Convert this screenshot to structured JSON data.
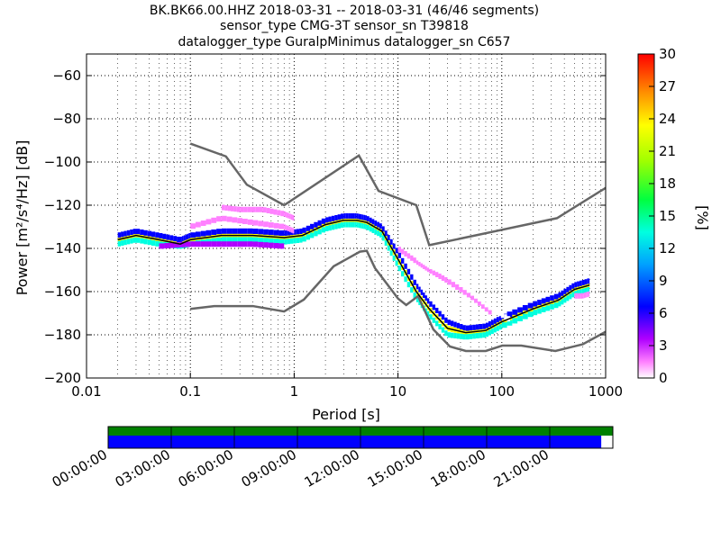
{
  "header": {
    "line1": "BK.BK66.00.HHZ   2018-03-31 -- 2018-03-31  (46/46 segments)",
    "line2": "sensor_type CMG-3T sensor_sn T39818",
    "line3": "datalogger_type GuralpMinimus datalogger_sn C657"
  },
  "chart_data": [
    {
      "type": "heatmap",
      "xlabel": "Period [s]",
      "ylabel": "Power [m²/s⁴/Hz] [dB]",
      "xscale": "log",
      "xlim": [
        0.01,
        1000
      ],
      "ylim": [
        -200,
        -50
      ],
      "x_ticks": [
        0.01,
        0.1,
        1,
        10,
        100,
        1000
      ],
      "x_tick_labels": [
        "0.01",
        "0.1",
        "1",
        "10",
        "100",
        "1000"
      ],
      "y_ticks": [
        -200,
        -180,
        -160,
        -140,
        -120,
        -100,
        -80,
        -60
      ],
      "y_tick_labels": [
        "−200",
        "−180",
        "−160",
        "−140",
        "−120",
        "−100",
        "−80",
        "−60"
      ],
      "grid": true,
      "colorbar": {
        "label": "[%]",
        "range": [
          0,
          30
        ],
        "ticks": [
          0,
          3,
          6,
          9,
          12,
          15,
          18,
          21,
          24,
          27,
          30
        ],
        "tick_labels": [
          "0",
          "3",
          "6",
          "9",
          "12",
          "15",
          "18",
          "21",
          "24",
          "27",
          "30"
        ],
        "colormap": "pqlx"
      },
      "series": [
        {
          "role": "mode",
          "color": "#000000",
          "x": [
            0.02,
            0.03,
            0.05,
            0.08,
            0.1,
            0.2,
            0.4,
            0.8,
            1.2,
            2,
            3,
            4,
            5,
            7,
            10,
            15,
            20,
            30,
            45,
            70,
            100,
            200,
            350,
            500,
            700
          ],
          "y": [
            -136,
            -134,
            -136,
            -138,
            -136,
            -134,
            -134,
            -135,
            -134,
            -129,
            -127,
            -127,
            -128,
            -132,
            -145,
            -160,
            -168,
            -177,
            -179,
            -178,
            -174,
            -168,
            -164,
            -159,
            -157
          ]
        },
        {
          "role": "upper-model",
          "color": "#666666",
          "x": [
            0.1,
            0.22,
            0.35,
            0.8,
            4.2,
            6.5,
            15,
            20,
            340,
            1000
          ],
          "y": [
            -91.5,
            -97.4,
            -110.5,
            -120,
            -97,
            -113.4,
            -120,
            -138.5,
            -126,
            -112
          ]
        },
        {
          "role": "lower-model",
          "color": "#666666",
          "x": [
            0.1,
            0.17,
            0.4,
            0.8,
            1.24,
            2.4,
            4.3,
            5,
            6,
            10,
            12,
            15.6,
            21.9,
            31.6,
            45,
            70,
            101,
            154,
            328,
            600,
            1000
          ],
          "y": [
            -168,
            -166.7,
            -166.7,
            -169.2,
            -163.7,
            -148.3,
            -141.5,
            -141.1,
            -149.1,
            -163.2,
            -166.2,
            -162.1,
            -177.5,
            -185.4,
            -187.5,
            -187.5,
            -185,
            -185,
            -187.5,
            -184.4,
            -178.6
          ]
        }
      ],
      "density_bands": [
        {
          "x": [
            0.02,
            0.03,
            0.05,
            0.08,
            0.1,
            0.2,
            0.4,
            0.8,
            1.2,
            2,
            3,
            4,
            5,
            7,
            10,
            15,
            20,
            30,
            45,
            70,
            100,
            200,
            350,
            500,
            700
          ],
          "y": [
            -136,
            -134,
            -136,
            -138,
            -136,
            -134,
            -134,
            -135,
            -134,
            -129,
            -127,
            -127,
            -128,
            -132,
            -145,
            -160,
            -168,
            -177,
            -179,
            -178,
            -174,
            -168,
            -164,
            -159,
            -157
          ],
          "percent": 25
        },
        {
          "x": [
            0.02,
            0.03,
            0.05,
            0.08,
            0.1,
            0.2,
            0.4,
            0.8,
            1.2,
            2,
            3,
            4,
            5,
            7,
            10,
            15,
            20,
            30,
            45,
            70,
            100,
            200,
            350,
            500,
            700
          ],
          "y": [
            -138,
            -136,
            -138,
            -139,
            -138,
            -136,
            -136,
            -137,
            -136,
            -131,
            -129,
            -129,
            -130,
            -134,
            -148,
            -163,
            -171,
            -180,
            -181,
            -180,
            -176,
            -170,
            -166,
            -161,
            -159
          ],
          "percent": 14
        },
        {
          "x": [
            0.02,
            0.03,
            0.05,
            0.08,
            0.1,
            0.2,
            0.4,
            0.8,
            1.2,
            2,
            3,
            4,
            5,
            7,
            10,
            15,
            20,
            30,
            45,
            70,
            100,
            200,
            350,
            500,
            700
          ],
          "y": [
            -134,
            -132,
            -134,
            -136,
            -134,
            -132,
            -132,
            -133,
            -132,
            -127,
            -125,
            -125,
            -126,
            -130,
            -142,
            -157,
            -165,
            -174,
            -177,
            -176,
            -172,
            -166,
            -162,
            -157,
            -155
          ],
          "percent": 9
        },
        {
          "x": [
            0.05,
            0.1,
            0.2,
            0.4,
            0.8
          ],
          "y": [
            -139,
            -138,
            -138,
            -138,
            -139
          ],
          "percent": 6
        },
        {
          "x": [
            0.2,
            0.3,
            0.5,
            0.8,
            1
          ],
          "y": [
            -121,
            -122,
            -122,
            -124,
            -126
          ],
          "percent": 2
        },
        {
          "x": [
            0.1,
            0.2,
            0.4,
            0.8,
            1
          ],
          "y": [
            -130,
            -126,
            -128,
            -130,
            -132
          ],
          "percent": 3
        },
        {
          "x": [
            10,
            15,
            20,
            30,
            50,
            80
          ],
          "y": [
            -140,
            -146,
            -150,
            -155,
            -162,
            -170
          ],
          "percent": 2
        },
        {
          "x": [
            15,
            20,
            30,
            50,
            80,
            120
          ],
          "y": [
            -144,
            -148,
            -152,
            -160,
            -168,
            -173
          ],
          "percent": 1
        },
        {
          "x": [
            500,
            600,
            700
          ],
          "y": [
            -162,
            -162,
            -161
          ],
          "percent": 3
        }
      ]
    },
    {
      "type": "bar",
      "role": "data-availability",
      "x_tick_labels": [
        "00:00:00",
        "03:00:00",
        "06:00:00",
        "09:00:00",
        "12:00:00",
        "15:00:00",
        "18:00:00",
        "21:00:00"
      ],
      "total_fraction": 1.0,
      "used_fraction": 0.977,
      "colors": {
        "total": "#008000",
        "used": "#0000ff"
      }
    }
  ]
}
